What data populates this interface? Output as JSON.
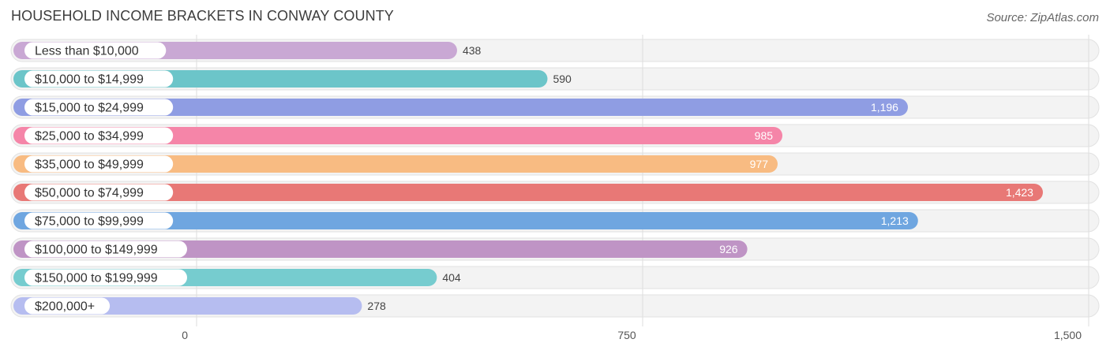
{
  "header": {
    "title": "HOUSEHOLD INCOME BRACKETS IN CONWAY COUNTY",
    "source": "Source: ZipAtlas.com"
  },
  "chart_data": {
    "type": "bar",
    "orientation": "horizontal",
    "title": "HOUSEHOLD INCOME BRACKETS IN CONWAY COUNTY",
    "categories": [
      "Less than $10,000",
      "$10,000 to $14,999",
      "$15,000 to $24,999",
      "$25,000 to $34,999",
      "$35,000 to $49,999",
      "$50,000 to $74,999",
      "$75,000 to $99,999",
      "$100,000 to $149,999",
      "$150,000 to $199,999",
      "$200,000+"
    ],
    "values": [
      438,
      590,
      1196,
      985,
      977,
      1423,
      1213,
      926,
      404,
      278
    ],
    "value_labels": [
      "438",
      "590",
      "1,196",
      "985",
      "977",
      "1,423",
      "1,213",
      "926",
      "404",
      "278"
    ],
    "colors": [
      "#c9a8d4",
      "#6cc5c9",
      "#8f9de3",
      "#f585a8",
      "#f8bb82",
      "#e87876",
      "#6fa6e0",
      "#bf94c5",
      "#76cccf",
      "#b6bdf0"
    ],
    "xlim": [
      0,
      1500
    ],
    "xticks": [
      0,
      750,
      1500
    ],
    "xtick_labels": [
      "0",
      "750",
      "1,500"
    ],
    "grid": true,
    "xlabel": "",
    "ylabel": ""
  }
}
